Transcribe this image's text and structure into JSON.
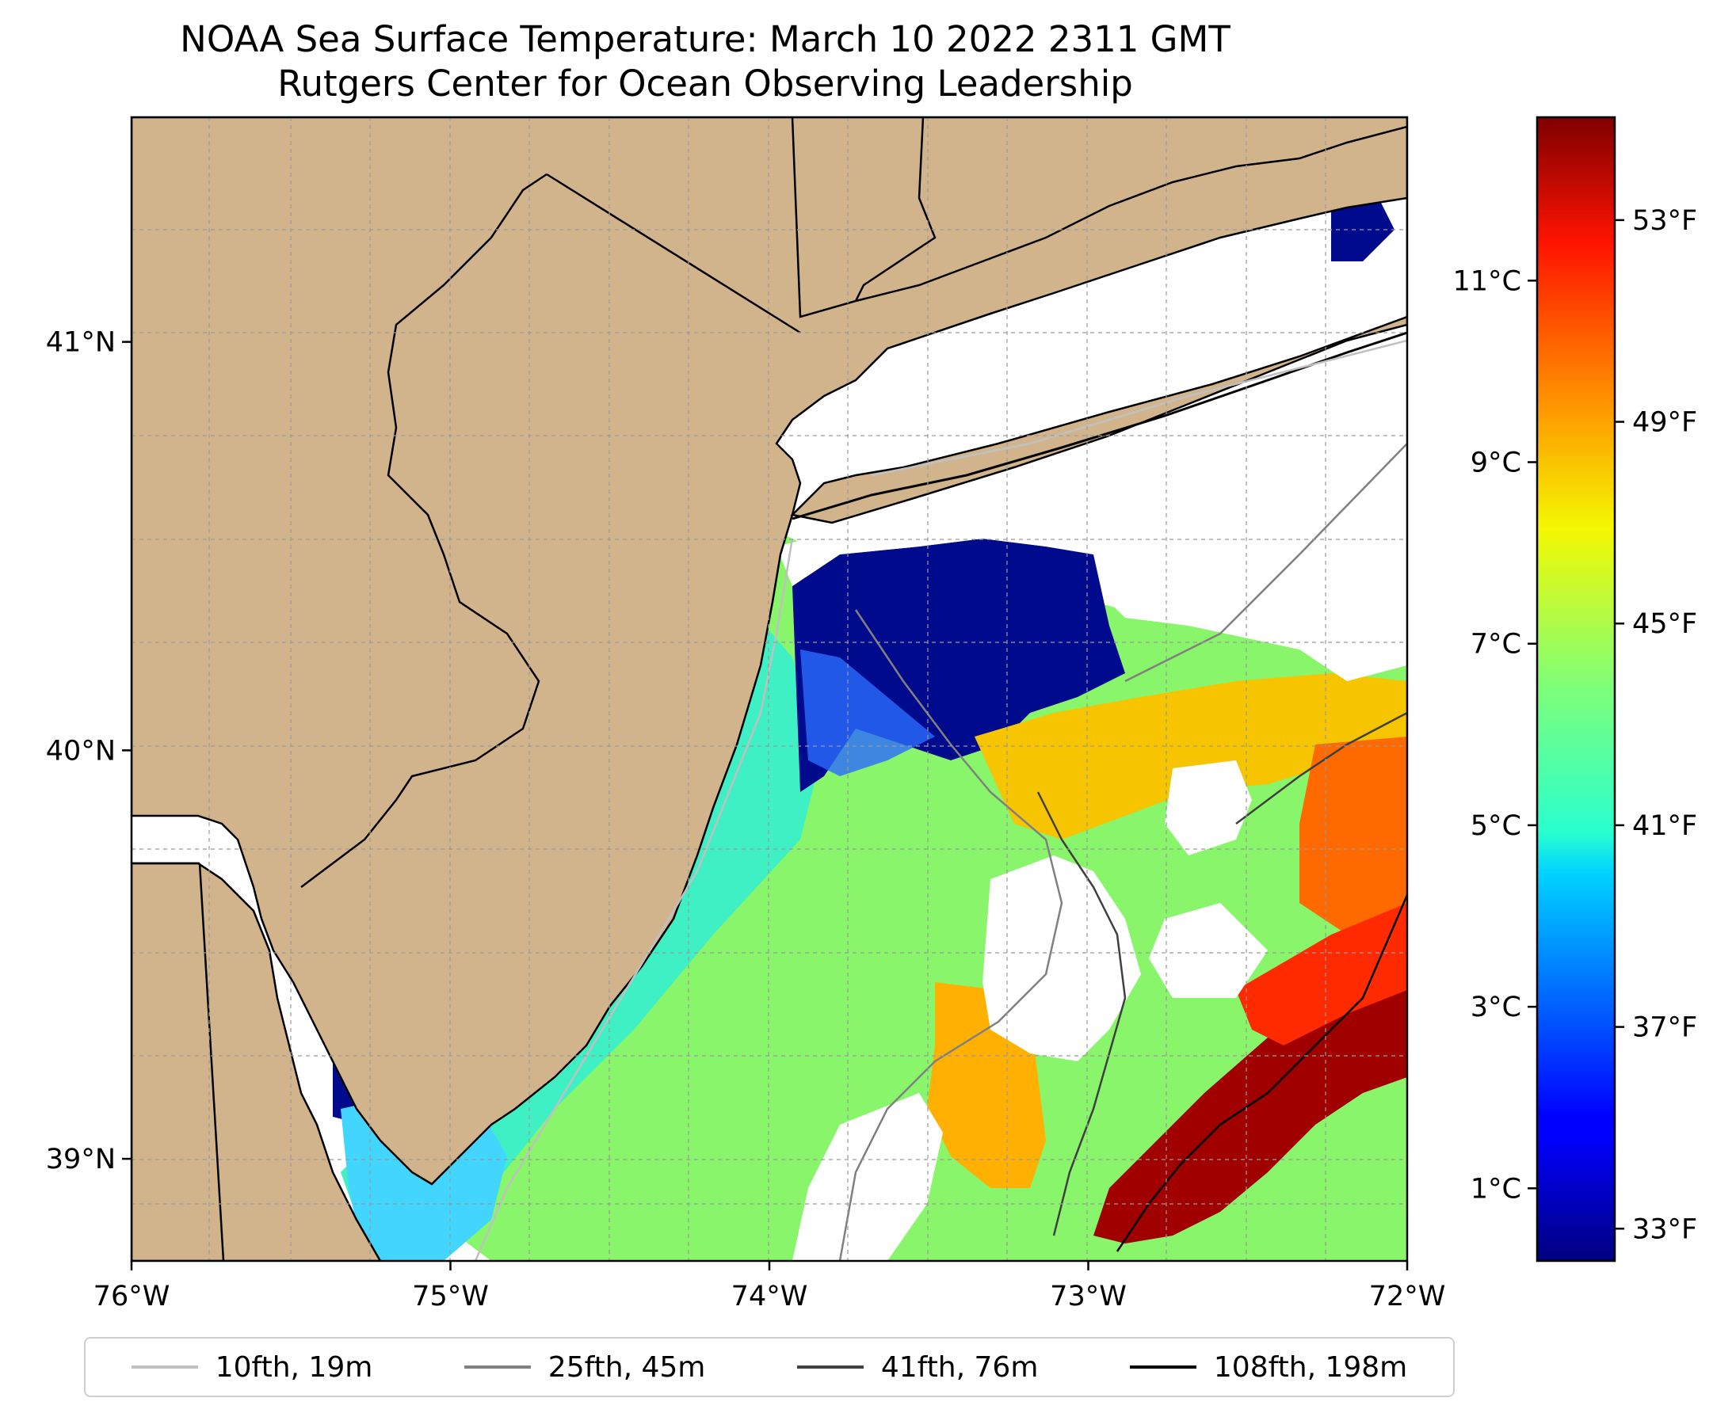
{
  "title": {
    "line1": "NOAA Sea Surface Temperature: March 10 2022 2311 GMT",
    "line2": "Rutgers Center for Ocean Observing Leadership"
  },
  "map": {
    "lon_range": [
      -76,
      -72
    ],
    "lat_range": [
      38.75,
      41.55
    ],
    "lon_ticks": [
      {
        "value": -76,
        "label": "76°W"
      },
      {
        "value": -75,
        "label": "75°W"
      },
      {
        "value": -74,
        "label": "74°W"
      },
      {
        "value": -73,
        "label": "73°W"
      },
      {
        "value": -72,
        "label": "72°W"
      }
    ],
    "lat_ticks": [
      {
        "value": 41,
        "label": "41°N"
      },
      {
        "value": 40,
        "label": "40°N"
      },
      {
        "value": 39,
        "label": "39°N"
      }
    ],
    "land_color": "#d2b48c",
    "water_nodata_color": "#ffffff"
  },
  "colorbar": {
    "celsius_ticks": [
      {
        "value": 1,
        "label": "1°C"
      },
      {
        "value": 3,
        "label": "3°C"
      },
      {
        "value": 5,
        "label": "5°C"
      },
      {
        "value": 7,
        "label": "7°C"
      },
      {
        "value": 9,
        "label": "9°C"
      },
      {
        "value": 11,
        "label": "11°C"
      }
    ],
    "fahrenheit_ticks": [
      {
        "value": 33,
        "label": "33°F"
      },
      {
        "value": 37,
        "label": "37°F"
      },
      {
        "value": 41,
        "label": "41°F"
      },
      {
        "value": 45,
        "label": "45°F"
      },
      {
        "value": 49,
        "label": "49°F"
      },
      {
        "value": 53,
        "label": "53°F"
      }
    ],
    "range_c": [
      0.2,
      12.8
    ],
    "colormap": "jet"
  },
  "legend": [
    {
      "label": "10fth, 19m",
      "color": "#c0c0c0"
    },
    {
      "label": "25fth, 45m",
      "color": "#808080"
    },
    {
      "label": "41fth, 76m",
      "color": "#404040"
    },
    {
      "label": "108fth, 198m",
      "color": "#000000"
    }
  ]
}
